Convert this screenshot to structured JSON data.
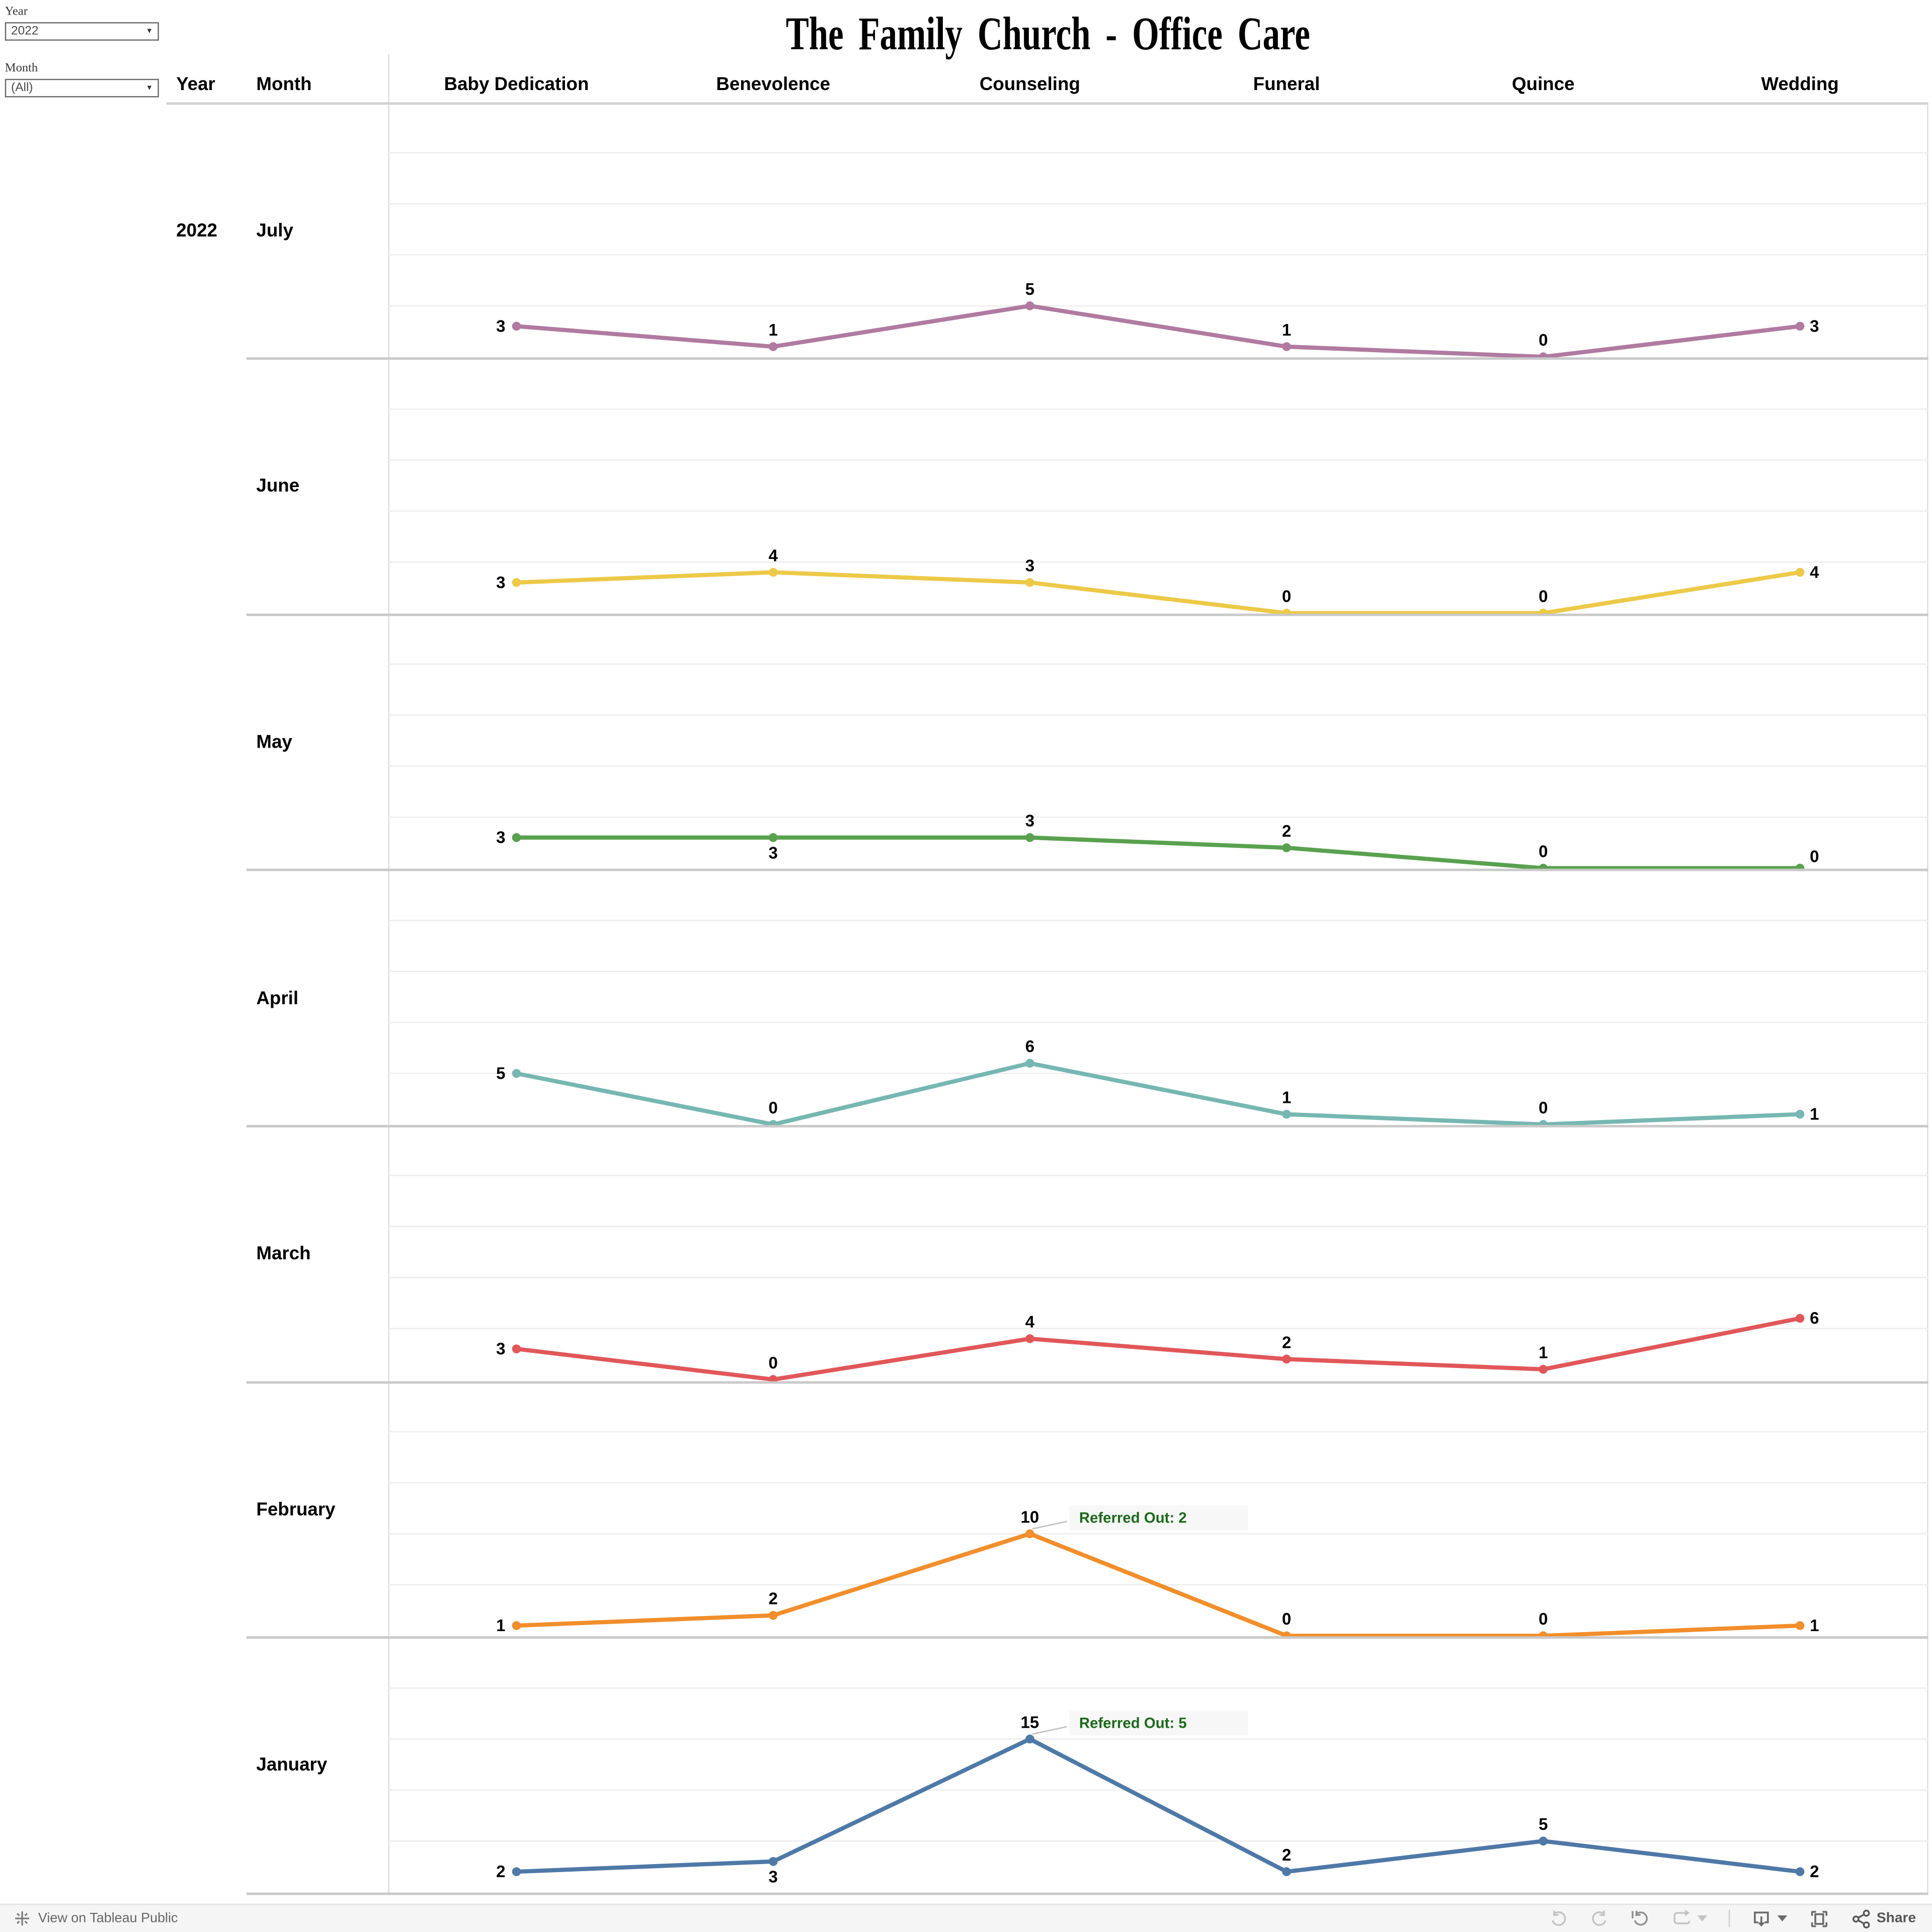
{
  "title": "The Family Church - Office Care",
  "filters": {
    "year": {
      "label": "Year",
      "value": "2022",
      "caret": "▾"
    },
    "month": {
      "label": "Month",
      "value": "(All)",
      "caret": "▾"
    }
  },
  "row_headers": {
    "year": "Year",
    "month": "Month"
  },
  "chart_data": {
    "type": "line",
    "title": "The Family Church - Office Care",
    "year": "2022",
    "categories": [
      "Baby Dedication",
      "Benevolence",
      "Counseling",
      "Funeral",
      "Quince",
      "Wedding"
    ],
    "ylim": [
      0,
      25
    ],
    "grid_step": 5,
    "grid": true,
    "annotation_color": "#1c691c",
    "series": [
      {
        "month": "July",
        "color": "#b07aa1",
        "values": [
          3,
          1,
          5,
          1,
          0,
          3
        ],
        "label_positions": [
          "L",
          "A",
          "A",
          "A",
          "A",
          "R"
        ]
      },
      {
        "month": "June",
        "color": "#edc948",
        "values": [
          3,
          4,
          3,
          0,
          0,
          4
        ],
        "label_positions": [
          "L",
          "A",
          "A",
          "A",
          "A",
          "R"
        ]
      },
      {
        "month": "May",
        "color": "#59a14f",
        "values": [
          3,
          3,
          3,
          2,
          0,
          0
        ],
        "label_positions": [
          "L",
          "B",
          "A",
          "A",
          "A",
          "R"
        ]
      },
      {
        "month": "April",
        "color": "#76b7b2",
        "values": [
          5,
          0,
          6,
          1,
          0,
          1
        ],
        "label_positions": [
          "L",
          "A",
          "A",
          "A",
          "A",
          "R"
        ]
      },
      {
        "month": "March",
        "color": "#e15759",
        "values": [
          3,
          0,
          4,
          2,
          1,
          6
        ],
        "label_positions": [
          "L",
          "A",
          "A",
          "A",
          "A",
          "R"
        ]
      },
      {
        "month": "February",
        "color": "#f28e2b",
        "values": [
          1,
          2,
          10,
          0,
          0,
          1
        ],
        "label_positions": [
          "L",
          "A",
          "A",
          "A",
          "A",
          "R"
        ],
        "annotation": {
          "text": "Referred Out: 2",
          "target_index": 2
        }
      },
      {
        "month": "January",
        "color": "#4e79a7",
        "values": [
          2,
          3,
          15,
          2,
          5,
          2
        ],
        "label_positions": [
          "L",
          "B",
          "A",
          "A",
          "A",
          "R"
        ],
        "annotation": {
          "text": "Referred Out: 5",
          "target_index": 2
        }
      }
    ]
  },
  "toolbar": {
    "view_link": "View on Tableau Public",
    "share": "Share"
  }
}
